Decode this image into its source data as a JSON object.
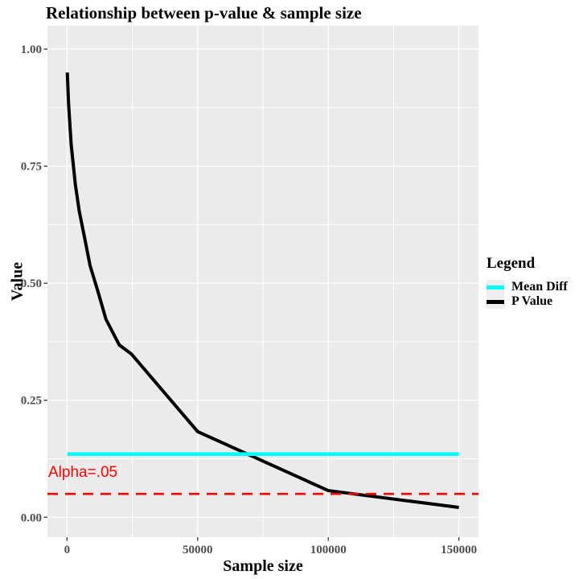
{
  "chart_data": {
    "type": "line",
    "title": "Relationship between p-value & sample size",
    "xlabel": "Sample size",
    "ylabel": "Value",
    "xlim": [
      -7500,
      157500
    ],
    "ylim": [
      -0.0425,
      1.05
    ],
    "grid": "white major and minor gridlines on gray panel",
    "x_ticks": [
      {
        "value": 0,
        "label": "0"
      },
      {
        "value": 50000,
        "label": "50000"
      },
      {
        "value": 100000,
        "label": "100000"
      },
      {
        "value": 150000,
        "label": "150000"
      }
    ],
    "y_ticks": [
      {
        "value": 0.0,
        "label": "0.00"
      },
      {
        "value": 0.25,
        "label": "0.25"
      },
      {
        "value": 0.5,
        "label": "0.50"
      },
      {
        "value": 0.75,
        "label": "0.75"
      },
      {
        "value": 1.0,
        "label": "1.00"
      }
    ],
    "x_minor": [
      25000,
      75000,
      125000
    ],
    "y_minor": [
      0.125,
      0.375,
      0.625,
      0.875
    ],
    "series": [
      {
        "name": "P Value",
        "color": "#000000",
        "width": 4,
        "points": [
          [
            100,
            0.95
          ],
          [
            600,
            0.882
          ],
          [
            1600,
            0.795
          ],
          [
            3200,
            0.71
          ],
          [
            4700,
            0.653
          ],
          [
            6800,
            0.595
          ],
          [
            8800,
            0.538
          ],
          [
            11900,
            0.481
          ],
          [
            14900,
            0.423
          ],
          [
            20000,
            0.368
          ],
          [
            24600,
            0.349
          ],
          [
            50000,
            0.183
          ],
          [
            100000,
            0.057
          ],
          [
            150000,
            0.021
          ]
        ]
      },
      {
        "name": "Mean Diff",
        "color": "#00ffff",
        "width": 4.6,
        "points": [
          [
            100,
            0.135
          ],
          [
            150000,
            0.135
          ]
        ]
      }
    ],
    "hline": {
      "value": 0.05,
      "color": "#ff0000",
      "style": "dashed",
      "label": "Alpha=.05"
    },
    "legend": {
      "title": "Legend",
      "position": "right",
      "entries": [
        {
          "label": "Mean Diff",
          "color": "#00ffff"
        },
        {
          "label": "P Value",
          "color": "#000000"
        }
      ]
    },
    "style": {
      "panel_bg": "#ebebeb",
      "grid_color": "#ffffff",
      "tick_color": "#333333",
      "tick_label_color": "#4d4d4d"
    }
  }
}
